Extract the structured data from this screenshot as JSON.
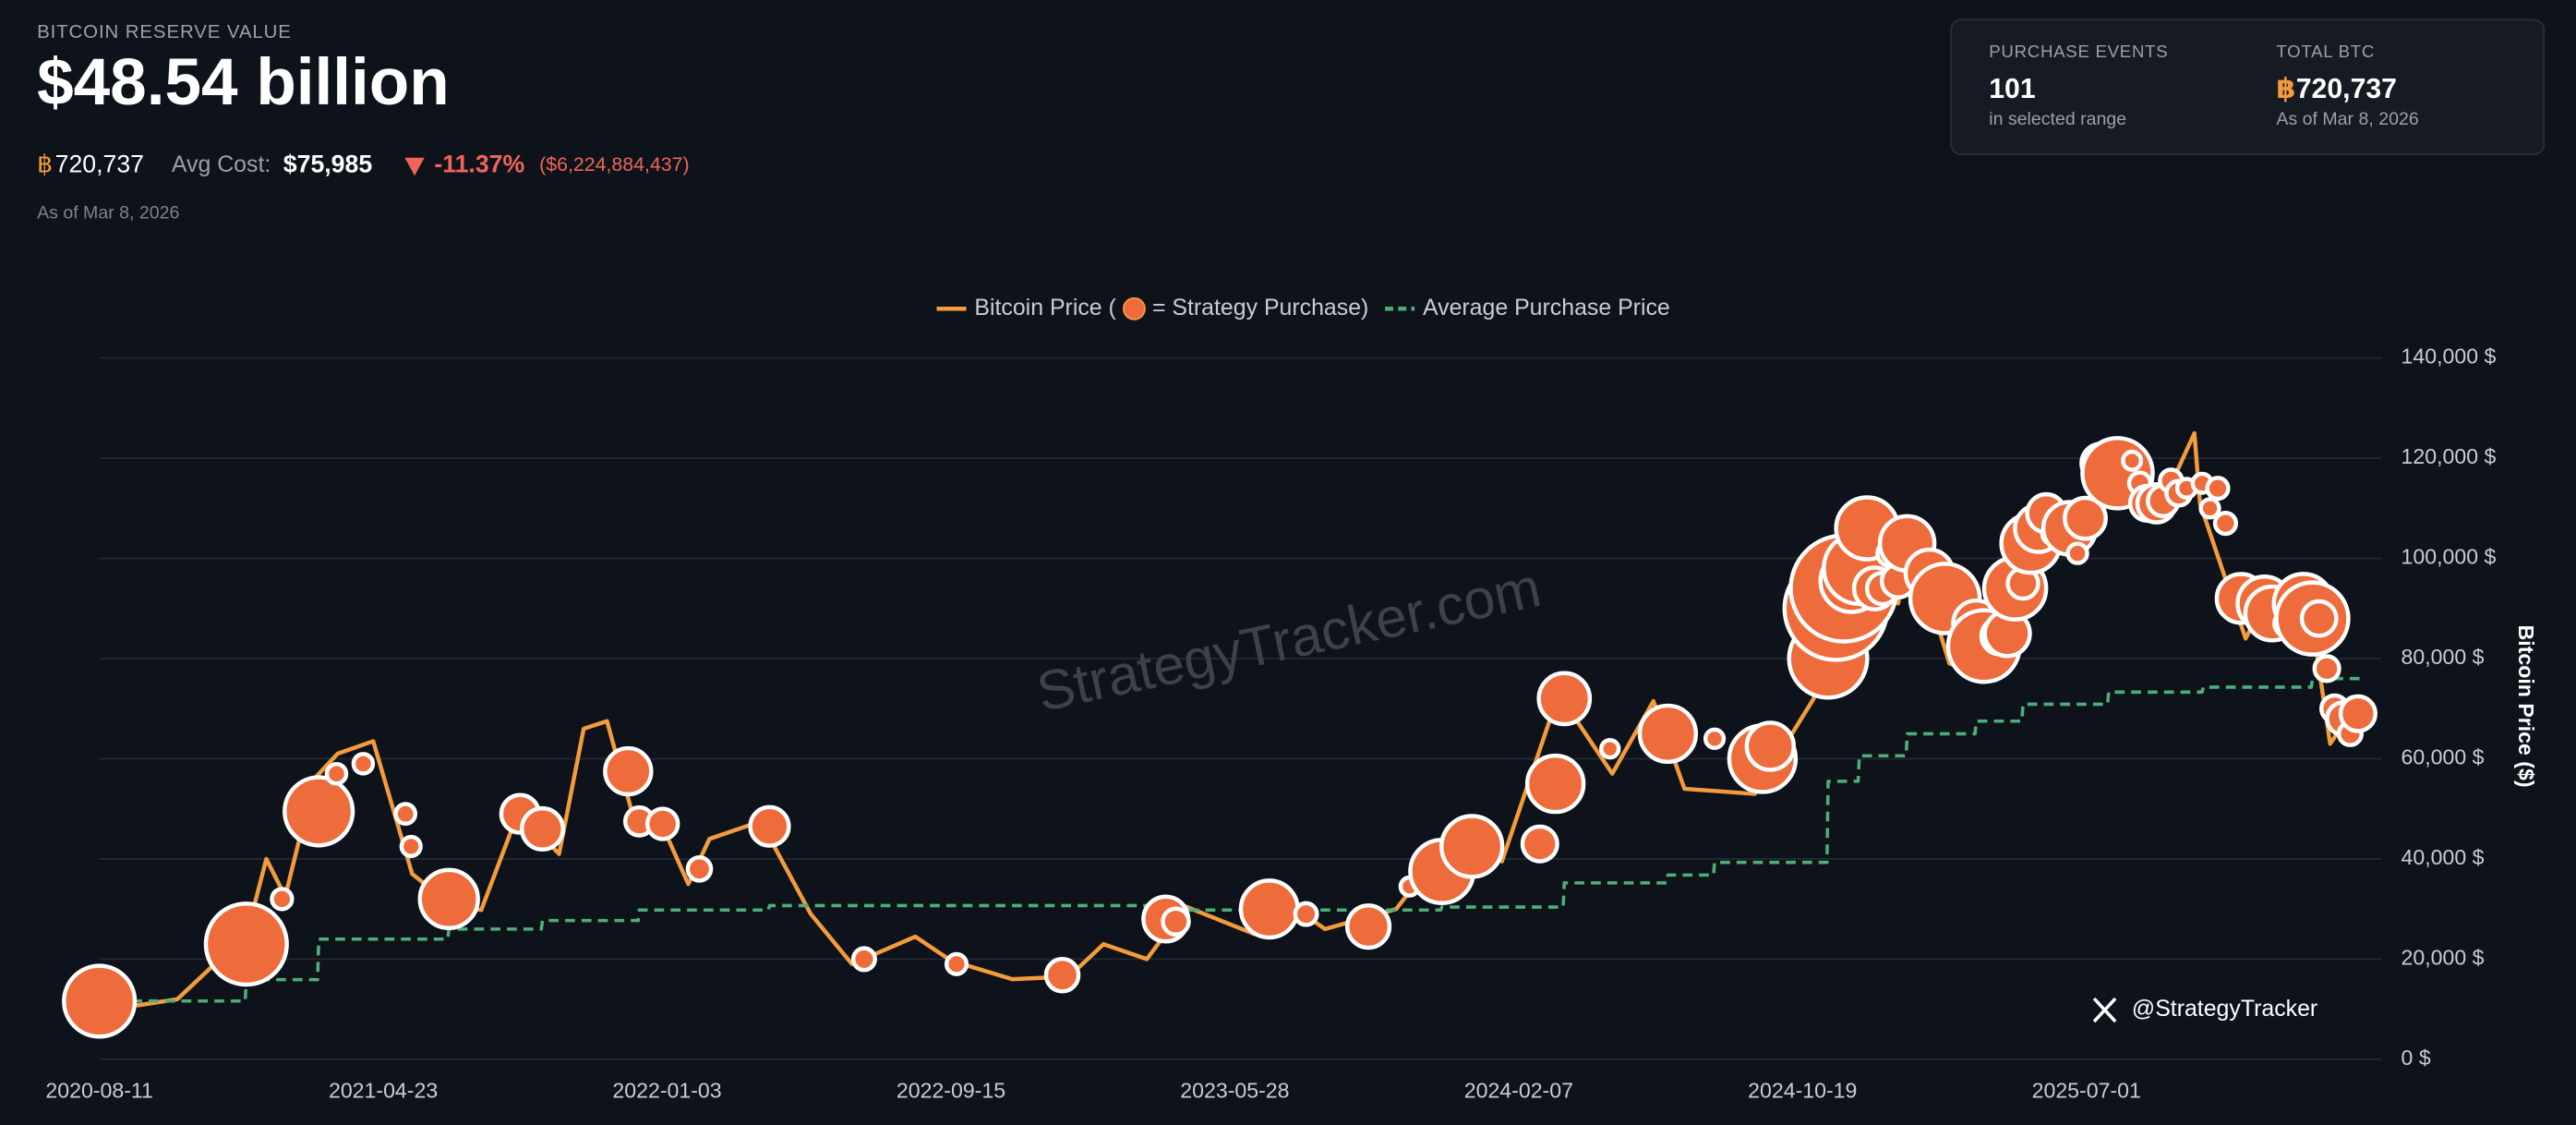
{
  "header": {
    "label": "BITCOIN RESERVE VALUE",
    "value": "$48.54 billion",
    "btc_symbol": "฿",
    "btc_total": "720,737",
    "avg_cost_label": "Avg Cost:",
    "avg_cost": "$75,985",
    "change_pct": "-11.37%",
    "change_usd": "($6,224,884,437)",
    "as_of": "As of Mar 8, 2026"
  },
  "card": {
    "events_label": "PURCHASE EVENTS",
    "events_value": "101",
    "events_note": "in selected range",
    "btc_label": "TOTAL BTC",
    "btc_symbol": "฿",
    "btc_value": "720,737",
    "btc_note": "As of Mar 8, 2026"
  },
  "watermark": "StrategyTracker.com",
  "handle": "@StrategyTracker",
  "chart_data": {
    "type": "line",
    "ylabel": "Bitcoin Price ($)",
    "grid": true,
    "xlim": [
      "2020-08-11",
      "2026-03-23"
    ],
    "xticks": [
      "2020-08-11",
      "2021-04-23",
      "2022-01-03",
      "2022-09-15",
      "2023-05-28",
      "2024-02-07",
      "2024-10-19",
      "2025-07-01"
    ],
    "ylim": [
      0,
      140000
    ],
    "yticks": [
      {
        "value": 0,
        "label": "0 $"
      },
      {
        "value": 20000,
        "label": "20,000 $"
      },
      {
        "value": 40000,
        "label": "40,000 $"
      },
      {
        "value": 60000,
        "label": "60,000 $"
      },
      {
        "value": 80000,
        "label": "80,000 $"
      },
      {
        "value": 100000,
        "label": "100,000 $"
      },
      {
        "value": 120000,
        "label": "120,000 $"
      },
      {
        "value": 140000,
        "label": "140,000 $"
      }
    ],
    "series": [
      {
        "name": "Bitcoin Price (",
        "color": "#f39c3c",
        "x": [
          "2020-08-11",
          "2020-09-15",
          "2020-10-20",
          "2020-11-20",
          "2020-12-15",
          "2021-01-08",
          "2021-01-25",
          "2021-02-20",
          "2021-03-13",
          "2021-04-14",
          "2021-05-19",
          "2021-06-22",
          "2021-07-20",
          "2021-08-20",
          "2021-09-07",
          "2021-09-28",
          "2021-10-20",
          "2021-11-10",
          "2021-12-04",
          "2021-12-29",
          "2022-01-22",
          "2022-02-10",
          "2022-03-28",
          "2022-05-12",
          "2022-06-18",
          "2022-08-14",
          "2022-09-15",
          "2022-11-09",
          "2022-12-30",
          "2023-01-30",
          "2023-03-10",
          "2023-04-14",
          "2023-06-15",
          "2023-07-13",
          "2023-08-17",
          "2023-10-20",
          "2023-11-15",
          "2023-12-08",
          "2024-01-23",
          "2024-03-14",
          "2024-05-01",
          "2024-06-07",
          "2024-07-05",
          "2024-08-05",
          "2024-09-06",
          "2024-10-29",
          "2024-11-22",
          "2024-12-17",
          "2025-01-13",
          "2025-01-22",
          "2025-02-28",
          "2025-04-08",
          "2025-05-22",
          "2025-06-22",
          "2025-07-14",
          "2025-08-14",
          "2025-09-01",
          "2025-10-06",
          "2025-10-11",
          "2025-11-21",
          "2025-12-10",
          "2026-01-14",
          "2026-02-05",
          "2026-02-20",
          "2026-03-08"
        ],
        "values": [
          11500,
          10800,
          12000,
          18500,
          19400,
          40000,
          32500,
          56000,
          61000,
          63500,
          37000,
          31000,
          29800,
          48000,
          46000,
          41000,
          66000,
          67500,
          48000,
          47000,
          35000,
          44000,
          47500,
          29000,
          19000,
          24500,
          19700,
          16000,
          16500,
          23000,
          20000,
          30500,
          25000,
          31500,
          26000,
          30000,
          37500,
          44000,
          39500,
          73000,
          57000,
          71500,
          54000,
          53500,
          53000,
          72000,
          99000,
          106000,
          91000,
          106000,
          79000,
          76500,
          111000,
          100000,
          122000,
          123000,
          108000,
          125000,
          111000,
          84000,
          92000,
          96000,
          63000,
          68000,
          67500
        ]
      },
      {
        "name": "Average Purchase Price",
        "color": "#4caf7a",
        "dashed": true,
        "x": [
          "2020-08-11",
          "2020-12-20",
          "2020-12-21",
          "2021-02-23",
          "2021-02-24",
          "2021-06-20",
          "2021-06-21",
          "2021-09-12",
          "2021-09-13",
          "2021-12-08",
          "2021-12-09",
          "2022-04-04",
          "2022-04-05",
          "2023-04-04",
          "2023-04-05",
          "2023-11-29",
          "2023-11-30",
          "2024-03-18",
          "2024-03-19",
          "2024-06-19",
          "2024-06-20",
          "2024-07-31",
          "2024-08-01",
          "2024-11-10",
          "2024-11-11",
          "2024-12-08",
          "2024-12-09",
          "2025-01-20",
          "2025-01-21",
          "2025-03-23",
          "2025-03-24",
          "2025-05-04",
          "2025-05-05",
          "2025-07-20",
          "2025-07-21",
          "2025-10-13",
          "2025-10-14",
          "2026-01-19",
          "2026-01-20",
          "2026-03-08"
        ],
        "values": [
          11650,
          11650,
          15900,
          15900,
          24000,
          24000,
          26000,
          26000,
          27700,
          27700,
          29800,
          29800,
          30700,
          30700,
          29800,
          29800,
          30400,
          30400,
          35200,
          35200,
          36800,
          36800,
          39300,
          39300,
          55500,
          55500,
          60600,
          60600,
          65000,
          65000,
          67500,
          67500,
          70900,
          70900,
          73300,
          73300,
          74300,
          74300,
          76000,
          76000
        ]
      },
      {
        "name": "= Strategy Purchase)",
        "color": "#ee6c3c",
        "marker": "bubble",
        "x": [
          "2020-08-11",
          "2020-12-21",
          "2021-01-22",
          "2021-02-24",
          "2021-03-12",
          "2021-04-05",
          "2021-05-13",
          "2021-05-18",
          "2021-06-21",
          "2021-08-24",
          "2021-09-13",
          "2021-11-29",
          "2021-12-09",
          "2021-12-30",
          "2022-02-01",
          "2022-04-05",
          "2022-06-29",
          "2022-09-20",
          "2022-12-24",
          "2023-03-27",
          "2023-04-05",
          "2023-06-28",
          "2023-07-31",
          "2023-09-25",
          "2023-11-01",
          "2023-11-30",
          "2023-12-27",
          "2024-02-26",
          "2024-03-11",
          "2024-03-19",
          "2024-04-29",
          "2024-06-20",
          "2024-08-01",
          "2024-09-13",
          "2024-09-20",
          "2024-11-11",
          "2024-11-18",
          "2024-11-25",
          "2024-12-02",
          "2024-12-09",
          "2024-12-16",
          "2024-12-23",
          "2024-12-30",
          "2025-01-06",
          "2025-01-13",
          "2025-01-21",
          "2025-02-10",
          "2025-02-24",
          "2025-03-17",
          "2025-03-24",
          "2025-03-31",
          "2025-04-14",
          "2025-04-21",
          "2025-04-28",
          "2025-05-05",
          "2025-05-12",
          "2025-05-19",
          "2025-05-26",
          "2025-06-02",
          "2025-06-16",
          "2025-06-23",
          "2025-06-30",
          "2025-07-14",
          "2025-07-29",
          "2025-08-11",
          "2025-08-18",
          "2025-08-25",
          "2025-09-02",
          "2025-09-08",
          "2025-09-15",
          "2025-09-22",
          "2025-09-29",
          "2025-10-13",
          "2025-10-20",
          "2025-10-27",
          "2025-11-03",
          "2025-11-17",
          "2025-12-01",
          "2025-12-08",
          "2025-12-15",
          "2025-12-29",
          "2026-01-05",
          "2026-01-12",
          "2026-01-20",
          "2026-01-26",
          "2026-02-02",
          "2026-02-09",
          "2026-02-17",
          "2026-02-23",
          "2026-03-02"
        ],
        "values": [
          11600,
          23000,
          32000,
          49500,
          57000,
          59000,
          49000,
          42500,
          32000,
          49000,
          46000,
          57500,
          47500,
          47000,
          38000,
          46500,
          20000,
          19000,
          16800,
          28000,
          27500,
          30000,
          29000,
          26500,
          34500,
          37500,
          42500,
          43000,
          55000,
          72000,
          62000,
          65000,
          64000,
          60000,
          62500,
          80000,
          90000,
          94000,
          95500,
          98000,
          106000,
          94000,
          94000,
          101000,
          95500,
          103000,
          97000,
          92000,
          83000,
          87000,
          82500,
          84500,
          85000,
          94000,
          95000,
          103000,
          106000,
          109000,
          105000,
          106000,
          101000,
          108000,
          119000,
          117000,
          119500,
          115000,
          111000,
          111000,
          111500,
          115500,
          113000,
          114000,
          115000,
          110000,
          114000,
          107000,
          92000,
          90000,
          91000,
          89000,
          87000,
          92000,
          91000,
          88000,
          88000,
          78000,
          70000,
          68000,
          65000,
          69000
        ],
        "sizes": [
          21454,
          29646,
          314,
          19452,
          262,
          253,
          271,
          229,
          13005,
          3907,
          5050,
          7002,
          1434,
          1914,
          660,
          4167,
          480,
          301,
          2395,
          6455,
          1045,
          12333,
          467,
          5445,
          155,
          16130,
          14620,
          3000,
          12000,
          9245,
          122,
          11931,
          169,
          18300,
          7420,
          27200,
          51780,
          55500,
          15400,
          21550,
          15350,
          5262,
          2138,
          1070,
          2530,
          11000,
          7633,
          20356,
          130,
          6911,
          22048,
          3459,
          6556,
          15355,
          1895,
          13390,
          7390,
          4020,
          705,
          10100,
          245,
          4980,
          4225,
          21021,
          155,
          430,
          3081,
          4048,
          1955,
          525,
          850,
          196,
          220,
          168,
          390,
          397,
          8178,
          130,
          10624,
          10645,
          1229,
          1287,
          13627,
          22305,
          2932,
          855,
          1142,
          2486,
          592,
          3015
        ]
      }
    ]
  }
}
